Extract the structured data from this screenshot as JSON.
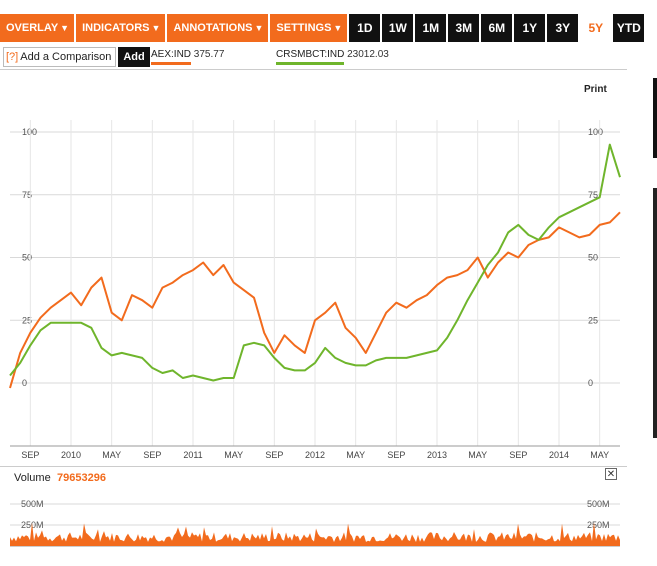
{
  "toolbar": {
    "menus": [
      {
        "label": "OVERLAY",
        "caret": "▼"
      },
      {
        "label": "INDICATORS",
        "caret": "▼"
      },
      {
        "label": "ANNOTATIONS",
        "caret": "▼"
      },
      {
        "label": "SETTINGS",
        "caret": "▼"
      }
    ],
    "ranges": [
      "1D",
      "1W",
      "1M",
      "3M",
      "6M",
      "1Y",
      "3Y",
      "5Y",
      "YTD"
    ],
    "active_range": "5Y"
  },
  "comparison": {
    "help": "[?]",
    "label": "Add a Comparison",
    "add_label": "Add"
  },
  "legend": [
    {
      "symbol": "AEX:IND",
      "value": "375.77",
      "color": "#f26b1d"
    },
    {
      "symbol": "CRSMBCT:IND",
      "value": "23012.03",
      "color": "#6fb52c"
    }
  ],
  "print_label": "Print",
  "volume": {
    "label": "Volume",
    "value": "79653296",
    "close": "✕"
  },
  "colors": {
    "orange": "#f26b1d",
    "green": "#6fb52c",
    "grid": "#d9d9d9"
  },
  "chart_data": {
    "type": "line",
    "x_axis_ticks": [
      "SEP",
      "2010",
      "MAY",
      "SEP",
      "2011",
      "MAY",
      "SEP",
      "2012",
      "MAY",
      "SEP",
      "2013",
      "MAY",
      "SEP",
      "2014",
      "MAY"
    ],
    "y_ticks": [
      0,
      25,
      50,
      75,
      100
    ],
    "ylim": [
      -25,
      115
    ],
    "x_range": [
      "2009-07",
      "2014-07"
    ],
    "series": [
      {
        "name": "AEX:IND",
        "color": "#f26b1d",
        "x": [
          "2009-07",
          "2009-08",
          "2009-09",
          "2009-10",
          "2009-11",
          "2009-12",
          "2010-01",
          "2010-02",
          "2010-03",
          "2010-04",
          "2010-05",
          "2010-06",
          "2010-07",
          "2010-08",
          "2010-09",
          "2010-10",
          "2010-11",
          "2010-12",
          "2011-01",
          "2011-02",
          "2011-03",
          "2011-04",
          "2011-05",
          "2011-06",
          "2011-07",
          "2011-08",
          "2011-09",
          "2011-10",
          "2011-11",
          "2011-12",
          "2012-01",
          "2012-02",
          "2012-03",
          "2012-04",
          "2012-05",
          "2012-06",
          "2012-07",
          "2012-08",
          "2012-09",
          "2012-10",
          "2012-11",
          "2012-12",
          "2013-01",
          "2013-02",
          "2013-03",
          "2013-04",
          "2013-05",
          "2013-06",
          "2013-07",
          "2013-08",
          "2013-09",
          "2013-10",
          "2013-11",
          "2013-12",
          "2014-01",
          "2014-02",
          "2014-03",
          "2014-04",
          "2014-05",
          "2014-06",
          "2014-07"
        ],
        "values": [
          -2,
          12,
          20,
          26,
          30,
          33,
          36,
          31,
          38,
          42,
          28,
          25,
          35,
          33,
          30,
          38,
          40,
          43,
          45,
          48,
          43,
          47,
          40,
          37,
          34,
          20,
          12,
          19,
          15,
          12,
          25,
          28,
          32,
          22,
          18,
          12,
          20,
          28,
          32,
          30,
          33,
          35,
          39,
          42,
          43,
          45,
          50,
          42,
          48,
          52,
          50,
          55,
          57,
          58,
          62,
          60,
          58,
          59,
          63,
          64,
          68
        ]
      },
      {
        "name": "CRSMBCT:IND",
        "color": "#6fb52c",
        "x": [
          "2009-07",
          "2009-08",
          "2009-09",
          "2009-10",
          "2009-11",
          "2009-12",
          "2010-01",
          "2010-02",
          "2010-03",
          "2010-04",
          "2010-05",
          "2010-06",
          "2010-07",
          "2010-08",
          "2010-09",
          "2010-10",
          "2010-11",
          "2010-12",
          "2011-01",
          "2011-02",
          "2011-03",
          "2011-04",
          "2011-05",
          "2011-06",
          "2011-07",
          "2011-08",
          "2011-09",
          "2011-10",
          "2011-11",
          "2011-12",
          "2012-01",
          "2012-02",
          "2012-03",
          "2012-04",
          "2012-05",
          "2012-06",
          "2012-07",
          "2012-08",
          "2012-09",
          "2012-10",
          "2012-11",
          "2012-12",
          "2013-01",
          "2013-02",
          "2013-03",
          "2013-04",
          "2013-05",
          "2013-06",
          "2013-07",
          "2013-08",
          "2013-09",
          "2013-10",
          "2013-11",
          "2013-12",
          "2014-01",
          "2014-02",
          "2014-03",
          "2014-04",
          "2014-05",
          "2014-06",
          "2014-07"
        ],
        "values": [
          3,
          8,
          15,
          21,
          24,
          24,
          24,
          24,
          22,
          14,
          11,
          12,
          11,
          10,
          6,
          4,
          5,
          2,
          3,
          2,
          1,
          2,
          2,
          15,
          16,
          15,
          10,
          6,
          5,
          5,
          8,
          14,
          10,
          8,
          7,
          7,
          9,
          10,
          10,
          10,
          11,
          12,
          13,
          18,
          25,
          33,
          40,
          47,
          52,
          60,
          63,
          59,
          57,
          62,
          66,
          68,
          70,
          72,
          74,
          95,
          82
        ]
      }
    ],
    "volume": {
      "y_ticks": [
        "250M",
        "500M"
      ],
      "ylim": [
        0,
        700
      ]
    }
  }
}
